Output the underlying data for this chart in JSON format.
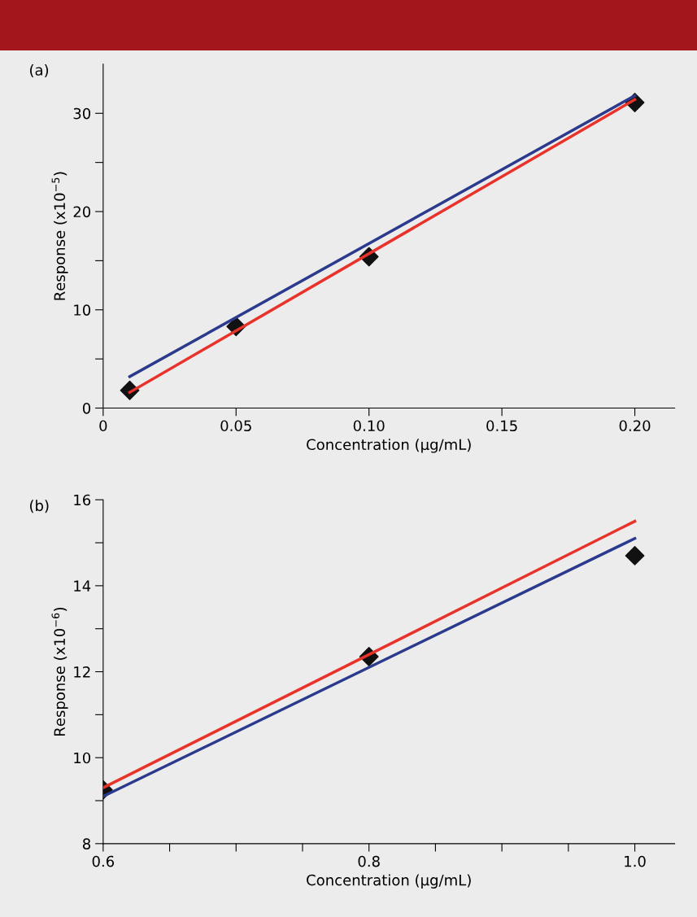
{
  "chart_data": [
    {
      "type": "scatter",
      "xlabel": "Concentration (µg/mL)",
      "ylabel": "Response (x10$^{−5}$)",
      "annotations": [
        "(a)"
      ],
      "grid": false,
      "xlim": [
        0,
        0.215
      ],
      "xticks": [
        0,
        {
          "value": 0.05,
          "label": "0.05"
        },
        {
          "value": 0.1,
          "label": "0.10"
        },
        {
          "value": 0.15,
          "label": "0.15"
        },
        {
          "value": 0.2,
          "label": "0.20"
        }
      ],
      "ylim": [
        0,
        35
      ],
      "yticks": [
        0,
        {
          "value": 5,
          "label": null
        },
        10,
        {
          "value": 15,
          "label": null
        },
        20,
        {
          "value": 25,
          "label": null
        },
        30
      ],
      "x": [
        0.01,
        0.05,
        0.1,
        0.2
      ],
      "series": [
        {
          "marker": "diamond",
          "color": "#111111",
          "values": [
            1.8,
            8.3,
            15.4,
            31.1
          ]
        },
        {
          "type": "line",
          "color": "#2b3a8c",
          "x": [
            0.01,
            0.2
          ],
          "values": [
            3.2,
            31.8
          ]
        },
        {
          "type": "line",
          "color": "#e8322a",
          "x": [
            0.01,
            0.2
          ],
          "values": [
            1.6,
            31.4
          ]
        }
      ]
    },
    {
      "type": "scatter",
      "xlabel": "Concentration (µg/mL)",
      "ylabel": "Response (x10$^{−6}$)",
      "annotations": [
        "(b)"
      ],
      "grid": false,
      "xlim": [
        0.6,
        1.03
      ],
      "xticks": [
        0.6,
        {
          "value": 0.65,
          "label": null
        },
        {
          "value": 0.7,
          "label": null
        },
        {
          "value": 0.75,
          "label": null
        },
        0.8,
        {
          "value": 0.85,
          "label": null
        },
        {
          "value": 0.9,
          "label": null
        },
        {
          "value": 0.95,
          "label": null
        },
        {
          "value": 1.0,
          "label": "1.0"
        }
      ],
      "ylim": [
        8,
        16
      ],
      "yticks": [
        8,
        {
          "value": 9,
          "label": null
        },
        10,
        {
          "value": 11,
          "label": null
        },
        12,
        {
          "value": 13,
          "label": null
        },
        14,
        {
          "value": 15,
          "label": null
        },
        16
      ],
      "x": [
        0.6,
        0.8,
        1.0
      ],
      "series": [
        {
          "marker": "diamond",
          "color": "#111111",
          "values": [
            9.25,
            12.35,
            14.7
          ]
        },
        {
          "type": "line",
          "color": "#2b3a8c",
          "x": [
            0.6,
            1.0
          ],
          "values": [
            9.1,
            15.1
          ]
        },
        {
          "type": "line",
          "color": "#e8322a",
          "x": [
            0.6,
            1.0
          ],
          "values": [
            9.3,
            15.5
          ]
        }
      ]
    }
  ]
}
